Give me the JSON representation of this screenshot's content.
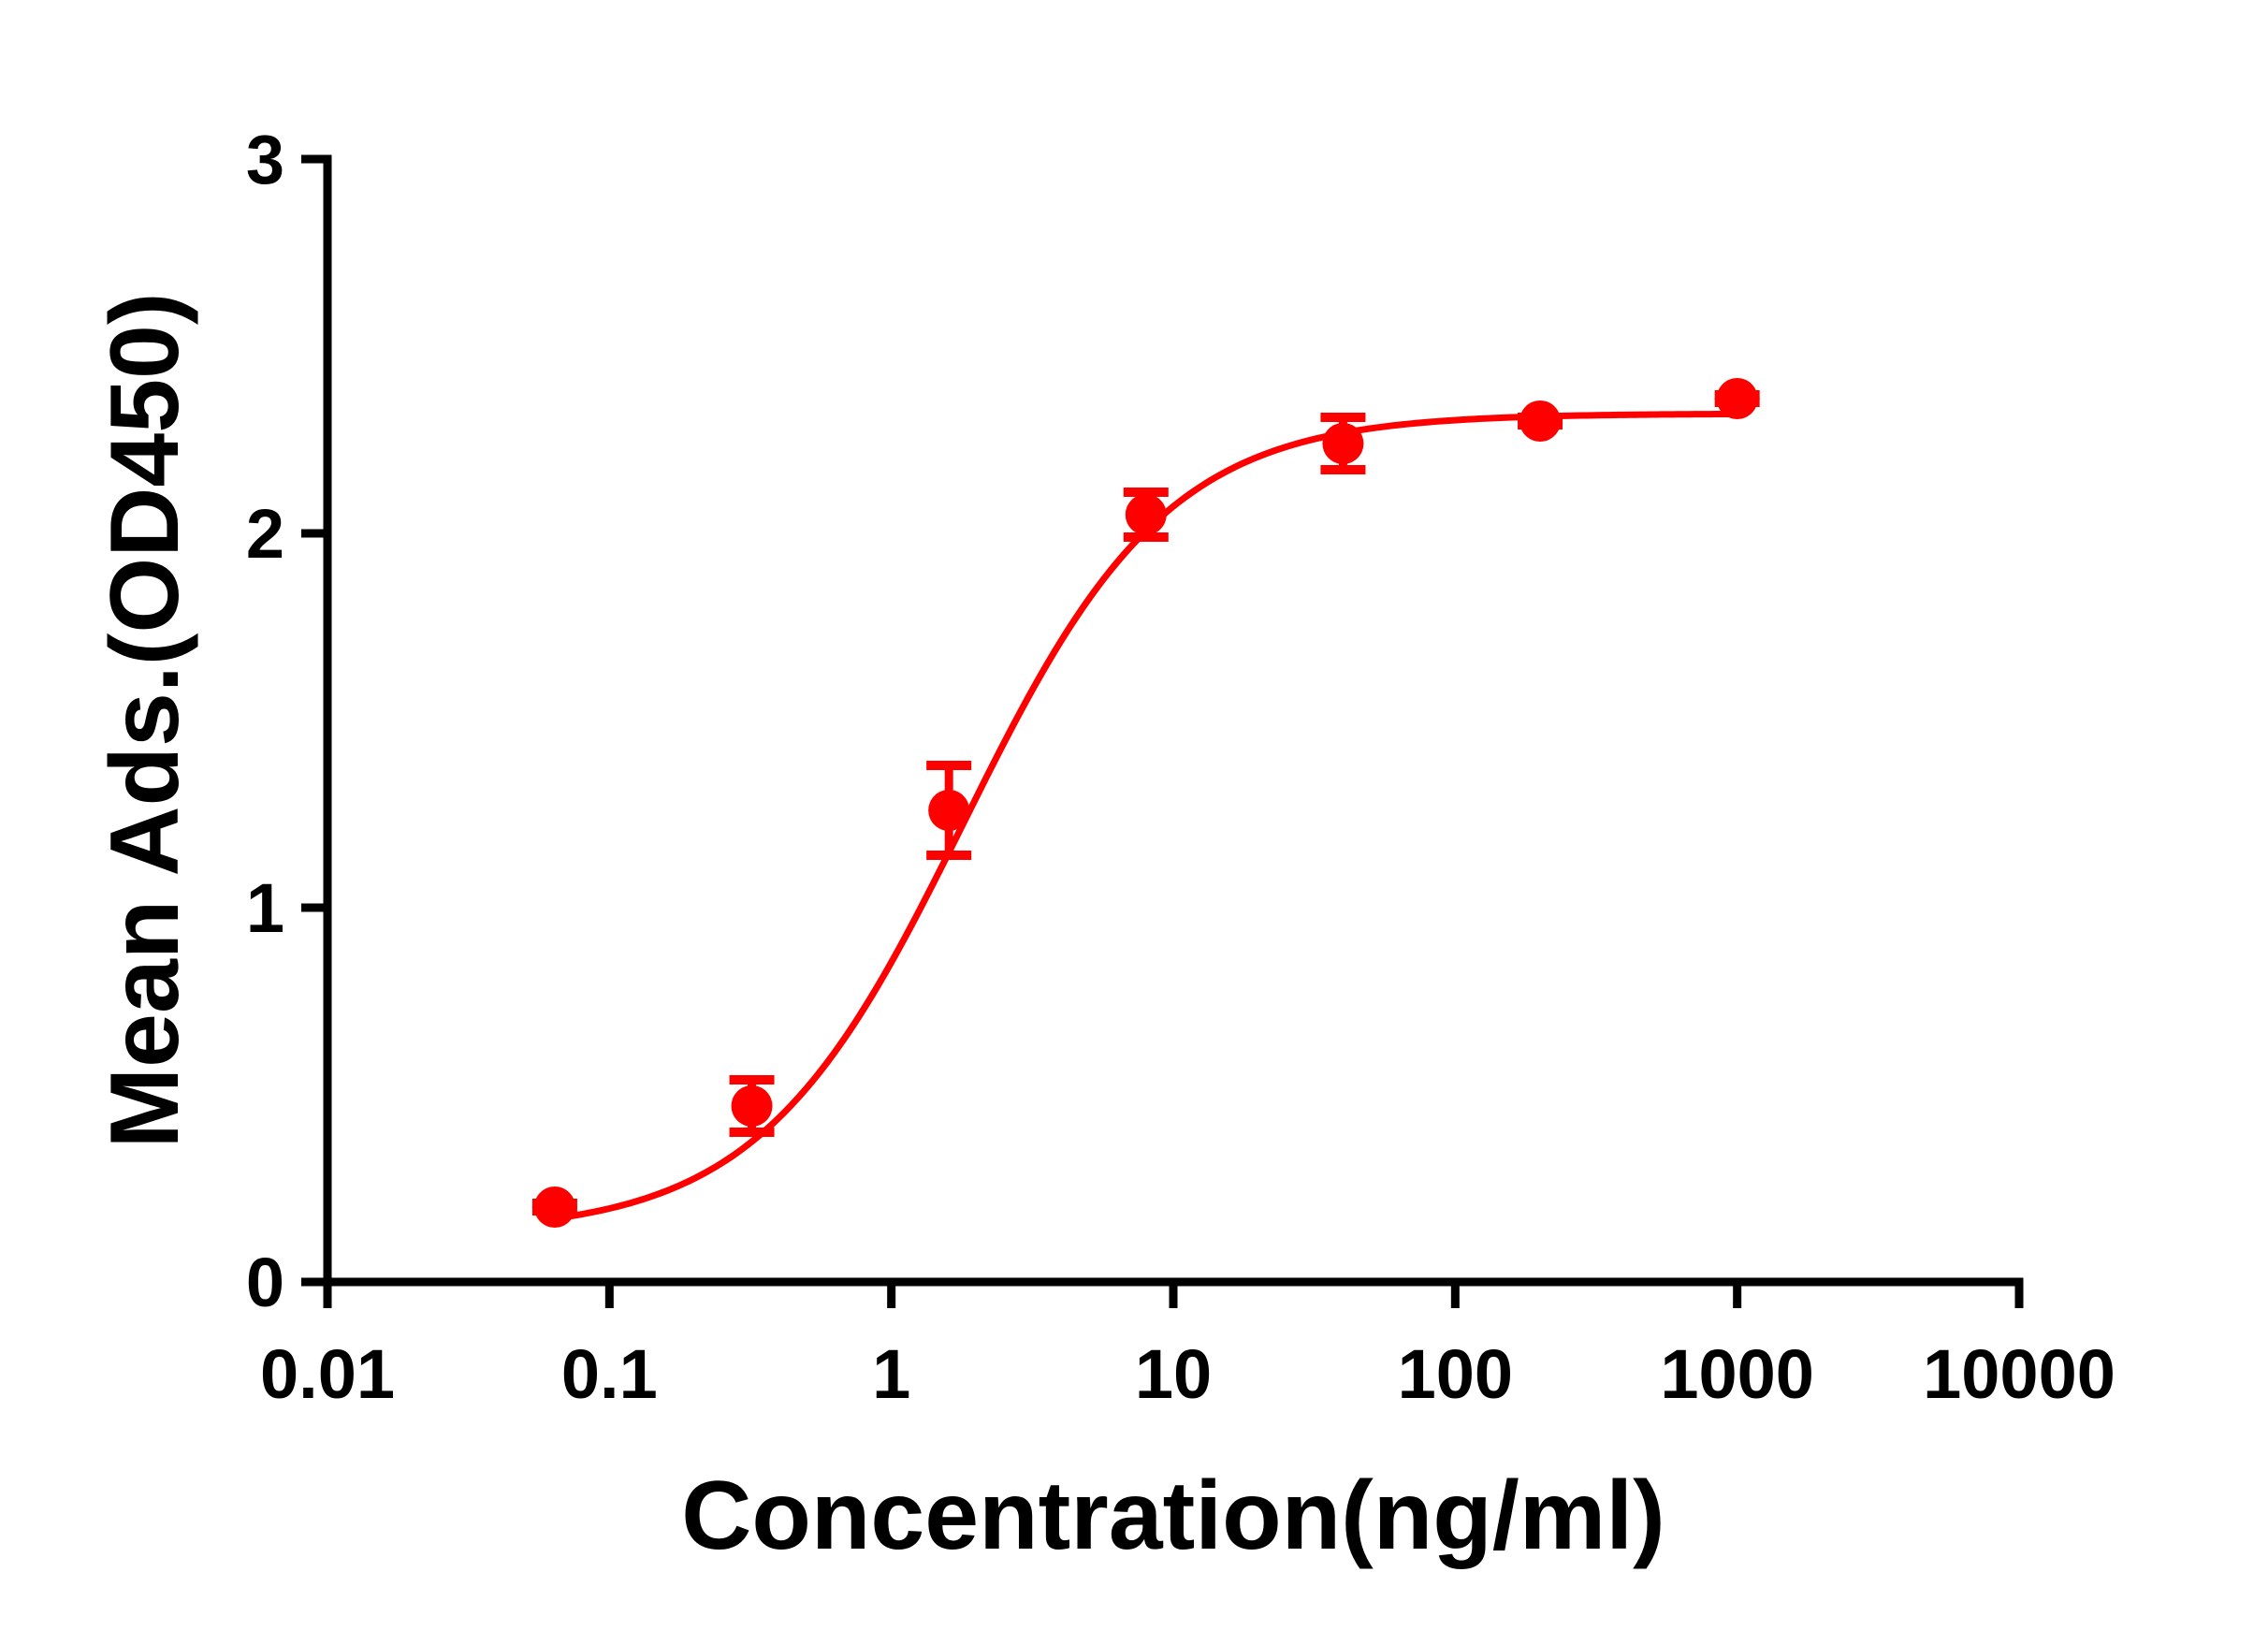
{
  "chart_data": {
    "type": "scatter",
    "xlabel": "Concentration(ng/ml)",
    "ylabel": "Mean Ads.(OD450)",
    "xscale": "log",
    "xlim": [
      0.01,
      10000
    ],
    "ylim": [
      0,
      3
    ],
    "x_ticks": [
      0.01,
      0.1,
      1,
      10,
      100,
      1000,
      10000
    ],
    "x_tick_labels": [
      "0.01",
      "0.1",
      "1",
      "10",
      "100",
      "1000",
      "10000"
    ],
    "y_ticks": [
      0,
      1,
      2,
      3
    ],
    "y_tick_labels": [
      "0",
      "1",
      "2",
      "3"
    ],
    "grid": false,
    "legend": "none",
    "color": "#ff0000",
    "series": [
      {
        "points": [
          {
            "x": 0.064,
            "y": 0.2,
            "err": 0.01
          },
          {
            "x": 0.32,
            "y": 0.47,
            "err": 0.07
          },
          {
            "x": 1.6,
            "y": 1.26,
            "err": 0.12
          },
          {
            "x": 8,
            "y": 2.05,
            "err": 0.06
          },
          {
            "x": 40,
            "y": 2.24,
            "err": 0.07
          },
          {
            "x": 200,
            "y": 2.3,
            "err": 0.01
          },
          {
            "x": 1000,
            "y": 2.36,
            "err": 0.01
          }
        ],
        "fit": {
          "model": "4PL",
          "bottom": 0.13,
          "top": 2.32,
          "ec50": 1.8,
          "hill": 1.2
        }
      }
    ]
  }
}
